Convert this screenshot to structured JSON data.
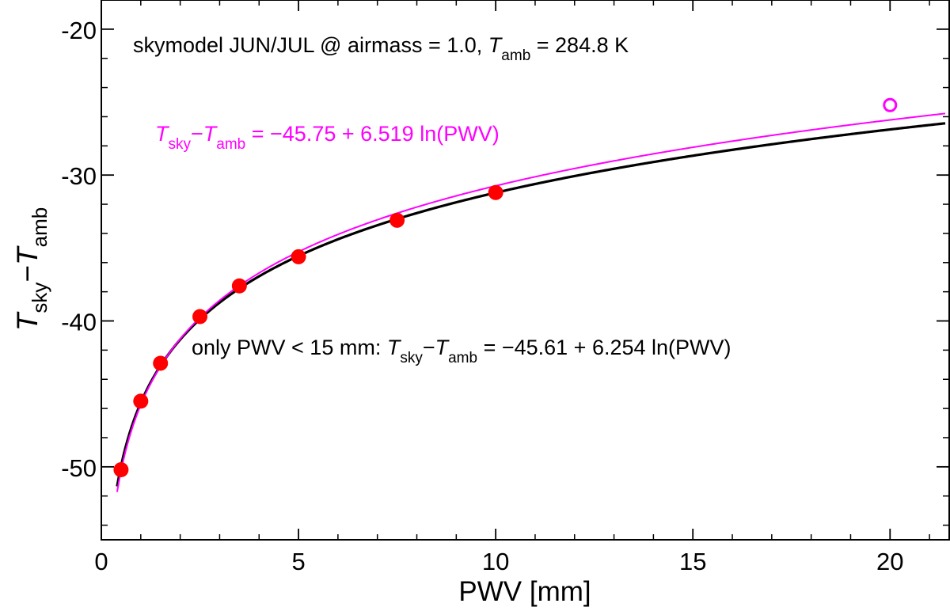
{
  "chart_data": {
    "type": "scatter",
    "title": "skymodel JUN/JUL @ airmass = 1.0, T_amb = 284.8 K",
    "title_parts": {
      "prefix": "skymodel JUN/JUL @ airmass = 1.0, ",
      "symbol": "T",
      "subscript": "amb",
      "suffix": " = 284.8 K"
    },
    "xlabel": "PWV [mm]",
    "ylabel": {
      "t1": "T",
      "sub1": "sky",
      "minus": "−",
      "t2": "T",
      "sub2": "amb"
    },
    "xlim": [
      0,
      21.5
    ],
    "ylim": [
      -55,
      -18
    ],
    "x_ticks": [
      0,
      5,
      10,
      15,
      20
    ],
    "x_tick_labels": [
      "0",
      "5",
      "10",
      "15",
      "20"
    ],
    "x_minor_step": 1,
    "y_ticks": [
      -50,
      -40,
      -30,
      -20
    ],
    "y_tick_labels": [
      "-50",
      "-40",
      "-30",
      "-20"
    ],
    "y_minor_step": 2,
    "colors": {
      "fit_all": "#ff00ff",
      "fit_lt15": "#000000",
      "points": "#ff0000",
      "excluded": "#ff00ff"
    },
    "points": {
      "name": "skymodel",
      "x": [
        0.5,
        1.0,
        1.5,
        2.5,
        3.5,
        5.0,
        7.5,
        10.0
      ],
      "y": [
        -50.2,
        -45.5,
        -42.9,
        -39.7,
        -37.6,
        -35.6,
        -33.1,
        -31.2
      ]
    },
    "excluded_points": {
      "x": [
        20.0
      ],
      "y": [
        -25.2
      ]
    },
    "fits": [
      {
        "name": "all",
        "a": -45.75,
        "b": 6.519,
        "color": "#ff00ff",
        "x_range": [
          0.4,
          21.4
        ]
      },
      {
        "name": "lt15",
        "a": -45.61,
        "b": 6.254,
        "color": "#000000",
        "x_range": [
          0.4,
          21.4
        ]
      }
    ],
    "annotations": {
      "fit_all": {
        "t1": "T",
        "sub1": "sky",
        "minus": "−",
        "t2": "T",
        "sub2": "amb",
        "eq": " = −45.75 + 6.519  ln(PWV)"
      },
      "fit_lt15": {
        "prefix": "only PWV < 15 mm: ",
        "t1": "T",
        "sub1": "sky",
        "minus": "−",
        "t2": "T",
        "sub2": "amb",
        "eq": " = −45.61 + 6.254  ln(PWV)"
      }
    }
  }
}
